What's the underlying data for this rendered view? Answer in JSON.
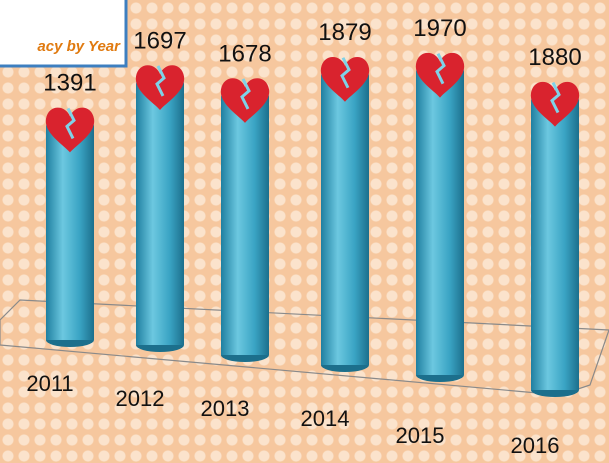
{
  "chart_data": {
    "type": "bar",
    "subtitle": "acy by Year",
    "categories": [
      "2011",
      "2012",
      "2013",
      "2014",
      "2015",
      "2016"
    ],
    "values": [
      1391,
      1697,
      1678,
      1879,
      1970,
      1880
    ],
    "color": "#3fa9c9"
  }
}
